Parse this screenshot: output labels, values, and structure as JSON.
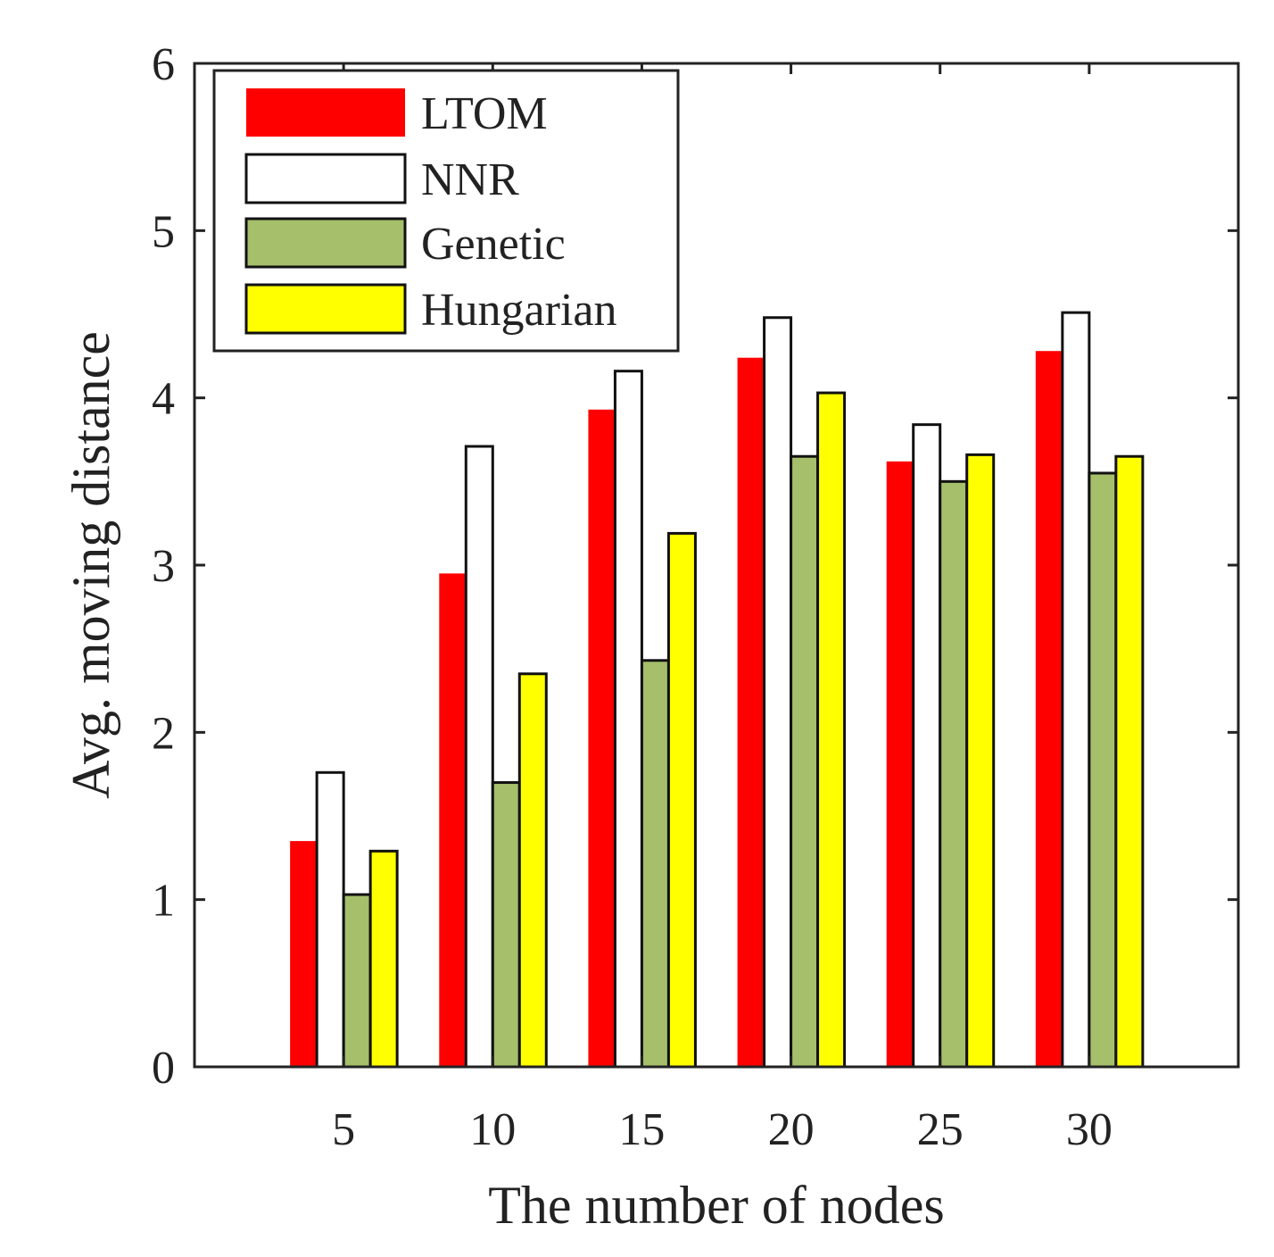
{
  "chart_data": {
    "type": "bar",
    "title": "",
    "xlabel": "The number of nodes",
    "ylabel": "Avg. moving distance",
    "categories": [
      "5",
      "10",
      "15",
      "20",
      "25",
      "30"
    ],
    "series": [
      {
        "name": "LTOM",
        "color": "#ff0000",
        "outlined": false,
        "values": [
          1.35,
          2.95,
          3.93,
          4.24,
          3.62,
          4.28
        ]
      },
      {
        "name": "NNR",
        "color": "#ffffff",
        "outlined": true,
        "values": [
          1.76,
          3.71,
          4.16,
          4.48,
          3.84,
          4.51
        ]
      },
      {
        "name": "Genetic",
        "color": "#a5bf6b",
        "outlined": true,
        "values": [
          1.03,
          1.7,
          2.43,
          3.65,
          3.5,
          3.55
        ]
      },
      {
        "name": "Hungarian",
        "color": "#ffff00",
        "outlined": true,
        "values": [
          1.29,
          2.35,
          3.19,
          4.03,
          3.66,
          3.65
        ]
      }
    ],
    "ylim": [
      0,
      6
    ],
    "yticks": [
      "0",
      "1",
      "2",
      "3",
      "4",
      "5",
      "6"
    ],
    "grid": false,
    "legend_position": "top-left"
  }
}
